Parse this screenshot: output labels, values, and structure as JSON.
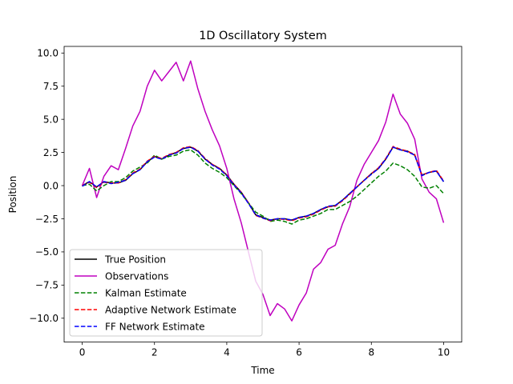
{
  "chart_data": {
    "type": "line",
    "title": "1D Oscillatory System",
    "xlabel": "Time",
    "ylabel": "Position",
    "xlim": [
      -0.5,
      10.5
    ],
    "ylim": [
      -11.8,
      10.5
    ],
    "xticks": [
      0,
      2,
      4,
      6,
      8,
      10
    ],
    "yticks": [
      -10.0,
      -7.5,
      -5.0,
      -2.5,
      0.0,
      2.5,
      5.0,
      7.5,
      10.0
    ],
    "xtick_labels": [
      "0",
      "2",
      "4",
      "6",
      "8",
      "10"
    ],
    "ytick_labels": [
      "−10.0",
      "−7.5",
      "−5.0",
      "−2.5",
      "0.0",
      "2.5",
      "5.0",
      "7.5",
      "10.0"
    ],
    "grid": false,
    "legend_position": "lower-left",
    "x": [
      0.0,
      0.2,
      0.4,
      0.6,
      0.8,
      1.0,
      1.2,
      1.4,
      1.6,
      1.8,
      2.0,
      2.2,
      2.4,
      2.6,
      2.8,
      3.0,
      3.2,
      3.4,
      3.6,
      3.8,
      4.0,
      4.2,
      4.4,
      4.6,
      4.8,
      5.0,
      5.2,
      5.4,
      5.6,
      5.8,
      6.0,
      6.2,
      6.4,
      6.6,
      6.8,
      7.0,
      7.2,
      7.4,
      7.6,
      7.8,
      8.0,
      8.2,
      8.4,
      8.6,
      8.8,
      9.0,
      9.2,
      9.4,
      9.6,
      9.8,
      10.0
    ],
    "series": [
      {
        "name": "True Position",
        "color": "#000000",
        "dash": "solid",
        "values": [
          0.0,
          0.3,
          -0.1,
          0.3,
          0.2,
          0.2,
          0.4,
          0.9,
          1.2,
          1.8,
          2.2,
          2.0,
          2.3,
          2.5,
          2.8,
          2.9,
          2.6,
          2.0,
          1.6,
          1.3,
          0.8,
          0.1,
          -0.5,
          -1.3,
          -2.2,
          -2.4,
          -2.6,
          -2.5,
          -2.5,
          -2.6,
          -2.4,
          -2.3,
          -2.1,
          -1.8,
          -1.6,
          -1.5,
          -1.1,
          -0.6,
          -0.1,
          0.4,
          0.9,
          1.3,
          2.0,
          2.9,
          2.7,
          2.6,
          2.3,
          0.8,
          1.0,
          1.1,
          0.3
        ]
      },
      {
        "name": "Observations",
        "color": "#bf00bf",
        "dash": "solid",
        "values": [
          0.0,
          1.3,
          -0.9,
          0.7,
          1.5,
          1.2,
          2.8,
          4.5,
          5.6,
          7.5,
          8.7,
          7.9,
          8.6,
          9.3,
          7.9,
          9.4,
          7.3,
          5.6,
          4.2,
          3.0,
          1.3,
          -1.0,
          -2.8,
          -5.0,
          -7.2,
          -8.2,
          -9.8,
          -8.9,
          -9.3,
          -10.2,
          -9.0,
          -8.1,
          -6.3,
          -5.8,
          -4.8,
          -4.5,
          -2.9,
          -1.6,
          0.4,
          1.6,
          2.5,
          3.4,
          4.8,
          6.9,
          5.4,
          4.7,
          3.5,
          0.5,
          -0.5,
          -1.0,
          -2.8
        ]
      },
      {
        "name": "Kalman Estimate",
        "color": "#008000",
        "dash": "dashed",
        "values": [
          0.0,
          0.1,
          -0.4,
          0.0,
          0.3,
          0.3,
          0.6,
          1.1,
          1.4,
          1.7,
          2.3,
          2.0,
          2.2,
          2.3,
          2.6,
          2.7,
          2.3,
          1.7,
          1.3,
          1.0,
          0.6,
          0.0,
          -0.6,
          -1.3,
          -2.0,
          -2.3,
          -2.7,
          -2.6,
          -2.7,
          -2.9,
          -2.6,
          -2.5,
          -2.3,
          -2.1,
          -1.8,
          -1.8,
          -1.5,
          -1.2,
          -0.8,
          -0.3,
          0.2,
          0.7,
          1.1,
          1.7,
          1.5,
          1.2,
          0.7,
          -0.1,
          -0.2,
          0.0,
          -0.6
        ]
      },
      {
        "name": "Adaptive Network Estimate",
        "color": "#ff0000",
        "dash": "dashed",
        "values": [
          0.0,
          0.25,
          -0.15,
          0.25,
          0.2,
          0.2,
          0.45,
          0.95,
          1.25,
          1.85,
          2.2,
          2.05,
          2.35,
          2.5,
          2.85,
          2.95,
          2.65,
          2.05,
          1.6,
          1.3,
          0.8,
          0.1,
          -0.5,
          -1.3,
          -2.25,
          -2.45,
          -2.65,
          -2.5,
          -2.55,
          -2.65,
          -2.45,
          -2.35,
          -2.15,
          -1.85,
          -1.6,
          -1.55,
          -1.15,
          -0.65,
          -0.1,
          0.4,
          0.9,
          1.35,
          2.05,
          2.95,
          2.75,
          2.6,
          2.35,
          0.8,
          1.0,
          1.15,
          0.35
        ]
      },
      {
        "name": "FF Network Estimate",
        "color": "#0000ff",
        "dash": "dashed",
        "values": [
          -0.05,
          0.3,
          -0.1,
          0.3,
          0.15,
          0.25,
          0.4,
          0.9,
          1.2,
          1.8,
          2.15,
          2.0,
          2.3,
          2.45,
          2.8,
          2.9,
          2.6,
          2.0,
          1.55,
          1.25,
          0.75,
          0.05,
          -0.55,
          -1.35,
          -2.2,
          -2.45,
          -2.6,
          -2.5,
          -2.5,
          -2.6,
          -2.4,
          -2.3,
          -2.1,
          -1.8,
          -1.55,
          -1.5,
          -1.1,
          -0.6,
          -0.1,
          0.4,
          0.85,
          1.3,
          2.0,
          2.9,
          2.7,
          2.55,
          2.3,
          0.75,
          1.0,
          1.1,
          0.3
        ]
      }
    ]
  }
}
